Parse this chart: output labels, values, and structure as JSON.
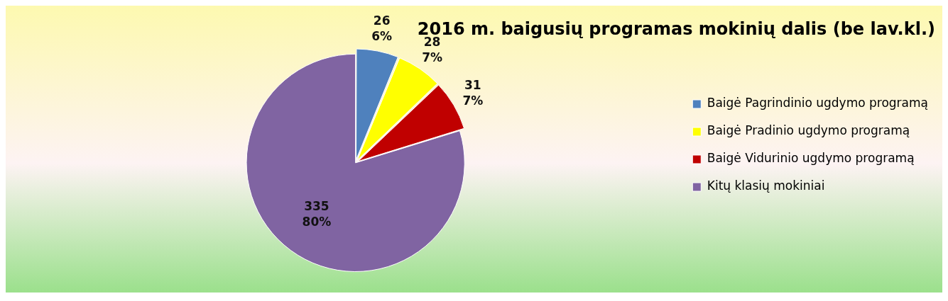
{
  "chart_data": {
    "type": "pie",
    "title": "2016 m. baigusių programas mokinių dalis (be lav.kl.)",
    "categories": [
      "Baigė Pagrindinio ugdymo programą",
      "Baigė Pradinio ugdymo programą",
      "Baigė Vidurinio ugdymo programą",
      "Kitų klasių mokiniai"
    ],
    "values": [
      26,
      28,
      31,
      335
    ],
    "colors": [
      "#4f81bd",
      "#ffff00",
      "#c00000",
      "#8064a2"
    ],
    "value_labels": [
      "26\n6%",
      "28\n7%",
      "31\n7%",
      "335\n80%"
    ],
    "legend": "right"
  }
}
